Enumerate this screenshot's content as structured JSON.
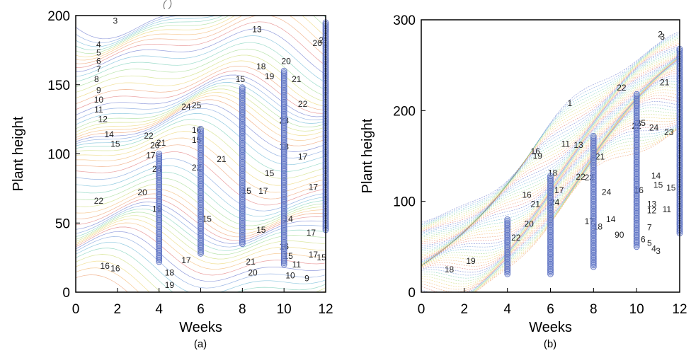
{
  "caption_fragment": "(                                                                                                                        )",
  "chart_data": [
    {
      "type": "scatter",
      "subtitle": "(a)",
      "xlabel": "Weeks",
      "ylabel": "Plant height",
      "xlim": [
        0,
        12
      ],
      "ylim": [
        0,
        200
      ],
      "xticks": [
        "0",
        "2",
        "4",
        "6",
        "8",
        "10",
        "12"
      ],
      "yticks": [
        "0",
        "50",
        "100",
        "150",
        "200"
      ],
      "grid": false,
      "points": {
        "x": [
          4,
          6,
          8,
          10,
          12
        ],
        "y_min": [
          22,
          28,
          35,
          20,
          45
        ],
        "y_max": [
          100,
          118,
          148,
          160,
          195
        ]
      },
      "contour_labels": [
        {
          "text": "3",
          "x": 1.9,
          "y": 194
        },
        {
          "text": "4",
          "x": 1.1,
          "y": 177
        },
        {
          "text": "5",
          "x": 1.1,
          "y": 171
        },
        {
          "text": "6",
          "x": 1.1,
          "y": 165
        },
        {
          "text": "7",
          "x": 1.1,
          "y": 159
        },
        {
          "text": "8",
          "x": 1.0,
          "y": 152
        },
        {
          "text": "9",
          "x": 1.1,
          "y": 144
        },
        {
          "text": "10",
          "x": 1.1,
          "y": 137
        },
        {
          "text": "11",
          "x": 1.1,
          "y": 130
        },
        {
          "text": "12",
          "x": 1.3,
          "y": 123
        },
        {
          "text": "14",
          "x": 1.6,
          "y": 112
        },
        {
          "text": "15",
          "x": 1.9,
          "y": 105
        },
        {
          "text": "22",
          "x": 3.5,
          "y": 111
        },
        {
          "text": "20",
          "x": 3.8,
          "y": 104
        },
        {
          "text": "21",
          "x": 4.1,
          "y": 106
        },
        {
          "text": "17",
          "x": 3.6,
          "y": 97
        },
        {
          "text": "24",
          "x": 3.9,
          "y": 87
        },
        {
          "text": "22",
          "x": 1.1,
          "y": 64
        },
        {
          "text": "20",
          "x": 3.2,
          "y": 70
        },
        {
          "text": "19",
          "x": 3.9,
          "y": 58
        },
        {
          "text": "16",
          "x": 1.4,
          "y": 17
        },
        {
          "text": "16",
          "x": 1.9,
          "y": 15
        },
        {
          "text": "18",
          "x": 4.5,
          "y": 12
        },
        {
          "text": "19",
          "x": 4.5,
          "y": 3
        },
        {
          "text": "17",
          "x": 5.3,
          "y": 21
        },
        {
          "text": "15",
          "x": 6.3,
          "y": 51
        },
        {
          "text": "22",
          "x": 5.8,
          "y": 88
        },
        {
          "text": "21",
          "x": 7.0,
          "y": 94
        },
        {
          "text": "24",
          "x": 5.3,
          "y": 132
        },
        {
          "text": "25",
          "x": 5.8,
          "y": 133
        },
        {
          "text": "16",
          "x": 5.8,
          "y": 115
        },
        {
          "text": "15",
          "x": 5.8,
          "y": 108
        },
        {
          "text": "13",
          "x": 8.7,
          "y": 188
        },
        {
          "text": "18",
          "x": 8.9,
          "y": 161
        },
        {
          "text": "15",
          "x": 7.9,
          "y": 152
        },
        {
          "text": "19",
          "x": 9.3,
          "y": 154
        },
        {
          "text": "20",
          "x": 10.1,
          "y": 165
        },
        {
          "text": "21",
          "x": 10.6,
          "y": 152
        },
        {
          "text": "22",
          "x": 10.9,
          "y": 134
        },
        {
          "text": "23",
          "x": 10.0,
          "y": 122
        },
        {
          "text": "18",
          "x": 10.0,
          "y": 103
        },
        {
          "text": "17",
          "x": 10.9,
          "y": 96
        },
        {
          "text": "15",
          "x": 9.3,
          "y": 84
        },
        {
          "text": "15",
          "x": 8.2,
          "y": 71
        },
        {
          "text": "17",
          "x": 9.0,
          "y": 71
        },
        {
          "text": "15",
          "x": 8.9,
          "y": 43
        },
        {
          "text": "14",
          "x": 10.2,
          "y": 51
        },
        {
          "text": "17",
          "x": 11.4,
          "y": 74
        },
        {
          "text": "17",
          "x": 11.3,
          "y": 41
        },
        {
          "text": "16",
          "x": 10.0,
          "y": 31
        },
        {
          "text": "15",
          "x": 10.2,
          "y": 24
        },
        {
          "text": "10",
          "x": 10.3,
          "y": 10
        },
        {
          "text": "11",
          "x": 10.6,
          "y": 18
        },
        {
          "text": "9",
          "x": 11.1,
          "y": 8
        },
        {
          "text": "21",
          "x": 8.4,
          "y": 20
        },
        {
          "text": "20",
          "x": 8.5,
          "y": 12
        },
        {
          "text": "17",
          "x": 11.4,
          "y": 25
        },
        {
          "text": "15",
          "x": 11.8,
          "y": 23
        },
        {
          "text": "20",
          "x": 11.6,
          "y": 178
        },
        {
          "text": "21",
          "x": 11.9,
          "y": 180
        }
      ]
    },
    {
      "type": "scatter",
      "subtitle": "(b)",
      "xlabel": "Weeks",
      "ylabel": "Plant height",
      "xlim": [
        0,
        12
      ],
      "ylim": [
        0,
        300
      ],
      "xticks": [
        "0",
        "2",
        "4",
        "6",
        "8",
        "10",
        "12"
      ],
      "yticks": [
        "0",
        "100",
        "200",
        "300"
      ],
      "grid": false,
      "points": {
        "x": [
          4,
          6,
          8,
          10,
          12
        ],
        "y_min": [
          20,
          20,
          28,
          50,
          65
        ],
        "y_max": [
          80,
          128,
          172,
          218,
          268
        ]
      },
      "contour_labels": [
        {
          "text": "3",
          "x": 11.2,
          "y": 278
        },
        {
          "text": "2",
          "x": 11.1,
          "y": 281
        },
        {
          "text": "21",
          "x": 11.3,
          "y": 228
        },
        {
          "text": "22",
          "x": 9.3,
          "y": 222
        },
        {
          "text": "1",
          "x": 6.9,
          "y": 205
        },
        {
          "text": "25",
          "x": 10.2,
          "y": 183
        },
        {
          "text": "22",
          "x": 10.0,
          "y": 180
        },
        {
          "text": "24",
          "x": 10.8,
          "y": 178
        },
        {
          "text": "23",
          "x": 11.5,
          "y": 173
        },
        {
          "text": "16",
          "x": 5.3,
          "y": 152
        },
        {
          "text": "19",
          "x": 5.4,
          "y": 147
        },
        {
          "text": "11",
          "x": 6.7,
          "y": 160
        },
        {
          "text": "13",
          "x": 7.3,
          "y": 159
        },
        {
          "text": "21",
          "x": 8.3,
          "y": 146
        },
        {
          "text": "18",
          "x": 6.1,
          "y": 128
        },
        {
          "text": "22",
          "x": 7.4,
          "y": 124
        },
        {
          "text": "23",
          "x": 7.8,
          "y": 123
        },
        {
          "text": "16",
          "x": 4.9,
          "y": 104
        },
        {
          "text": "17",
          "x": 6.4,
          "y": 109
        },
        {
          "text": "21",
          "x": 5.3,
          "y": 94
        },
        {
          "text": "20",
          "x": 5.0,
          "y": 72
        },
        {
          "text": "22",
          "x": 4.4,
          "y": 57
        },
        {
          "text": "24",
          "x": 6.2,
          "y": 96
        },
        {
          "text": "24",
          "x": 8.6,
          "y": 107
        },
        {
          "text": "17",
          "x": 7.8,
          "y": 75
        },
        {
          "text": "18",
          "x": 8.2,
          "y": 69
        },
        {
          "text": "14",
          "x": 8.8,
          "y": 77
        },
        {
          "text": "90",
          "x": 9.2,
          "y": 60
        },
        {
          "text": "16",
          "x": 10.1,
          "y": 109
        },
        {
          "text": "14",
          "x": 10.9,
          "y": 125
        },
        {
          "text": "15",
          "x": 11.0,
          "y": 115
        },
        {
          "text": "15",
          "x": 11.6,
          "y": 112
        },
        {
          "text": "13",
          "x": 10.7,
          "y": 94
        },
        {
          "text": "12",
          "x": 10.7,
          "y": 87
        },
        {
          "text": "11",
          "x": 11.4,
          "y": 88
        },
        {
          "text": "7",
          "x": 10.6,
          "y": 68
        },
        {
          "text": "6",
          "x": 10.3,
          "y": 55
        },
        {
          "text": "5",
          "x": 10.6,
          "y": 51
        },
        {
          "text": "4",
          "x": 10.8,
          "y": 45
        },
        {
          "text": "3",
          "x": 11.0,
          "y": 42
        },
        {
          "text": "18",
          "x": 1.3,
          "y": 22
        },
        {
          "text": "19",
          "x": 2.3,
          "y": 31
        }
      ]
    }
  ]
}
